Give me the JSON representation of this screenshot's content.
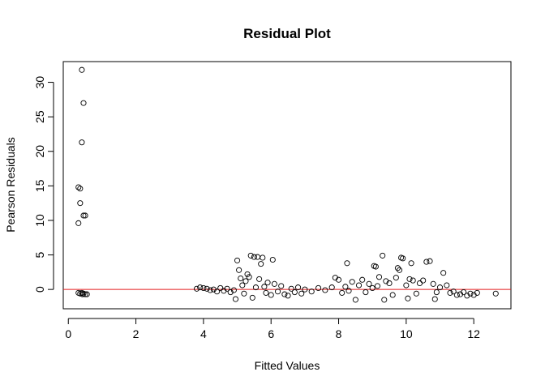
{
  "chart_data": {
    "type": "scatter",
    "title": "Residual Plot",
    "xlabel": "Fitted Values",
    "ylabel": "Pearson Residuals",
    "xlim": [
      -0.15,
      13.1
    ],
    "ylim": [
      -2.8,
      33.0
    ],
    "xticks": [
      0,
      2,
      4,
      6,
      8,
      10,
      12
    ],
    "yticks": [
      0,
      5,
      10,
      15,
      20,
      25,
      30
    ],
    "hline": {
      "y": 0,
      "color": "#e31a1c"
    },
    "point_color": "#000000",
    "grid": false,
    "legend": "none",
    "points": [
      [
        0.4,
        31.8
      ],
      [
        0.45,
        27.0
      ],
      [
        0.4,
        21.3
      ],
      [
        0.3,
        14.8
      ],
      [
        0.35,
        14.6
      ],
      [
        0.35,
        12.5
      ],
      [
        0.45,
        10.7
      ],
      [
        0.5,
        10.7
      ],
      [
        0.3,
        9.6
      ],
      [
        0.3,
        -0.5
      ],
      [
        0.35,
        -0.6
      ],
      [
        0.4,
        -0.5
      ],
      [
        0.42,
        -0.7
      ],
      [
        0.45,
        -0.6
      ],
      [
        0.5,
        -0.7
      ],
      [
        0.55,
        -0.7
      ],
      [
        3.8,
        0.1
      ],
      [
        3.9,
        0.3
      ],
      [
        4.0,
        0.2
      ],
      [
        4.1,
        0.1
      ],
      [
        4.2,
        -0.1
      ],
      [
        4.3,
        0.0
      ],
      [
        4.4,
        -0.3
      ],
      [
        4.5,
        0.2
      ],
      [
        4.6,
        -0.2
      ],
      [
        4.7,
        0.1
      ],
      [
        4.8,
        -0.4
      ],
      [
        4.9,
        -0.1
      ],
      [
        4.95,
        -1.4
      ],
      [
        5.0,
        4.2
      ],
      [
        5.05,
        2.8
      ],
      [
        5.1,
        1.6
      ],
      [
        5.15,
        0.6
      ],
      [
        5.2,
        -0.6
      ],
      [
        5.25,
        1.2
      ],
      [
        5.3,
        2.2
      ],
      [
        5.35,
        1.8
      ],
      [
        5.4,
        4.9
      ],
      [
        5.45,
        -1.2
      ],
      [
        5.5,
        4.7
      ],
      [
        5.55,
        0.3
      ],
      [
        5.6,
        4.7
      ],
      [
        5.65,
        1.5
      ],
      [
        5.7,
        3.7
      ],
      [
        5.75,
        4.6
      ],
      [
        5.8,
        0.4
      ],
      [
        5.85,
        -0.5
      ],
      [
        5.9,
        1.0
      ],
      [
        6.0,
        -0.8
      ],
      [
        6.05,
        4.3
      ],
      [
        6.1,
        0.8
      ],
      [
        6.2,
        -0.3
      ],
      [
        6.3,
        0.5
      ],
      [
        6.4,
        -0.7
      ],
      [
        6.5,
        -0.9
      ],
      [
        6.6,
        0.1
      ],
      [
        6.7,
        -0.4
      ],
      [
        6.8,
        0.3
      ],
      [
        6.9,
        -0.6
      ],
      [
        7.0,
        0.0
      ],
      [
        7.2,
        -0.3
      ],
      [
        7.4,
        0.2
      ],
      [
        7.6,
        -0.1
      ],
      [
        7.8,
        0.3
      ],
      [
        7.9,
        1.7
      ],
      [
        8.0,
        1.4
      ],
      [
        8.1,
        -0.5
      ],
      [
        8.2,
        0.4
      ],
      [
        8.25,
        3.8
      ],
      [
        8.3,
        -0.2
      ],
      [
        8.4,
        1.1
      ],
      [
        8.5,
        -1.5
      ],
      [
        8.6,
        0.6
      ],
      [
        8.7,
        1.4
      ],
      [
        8.8,
        -0.4
      ],
      [
        8.9,
        0.8
      ],
      [
        9.0,
        0.2
      ],
      [
        9.05,
        3.4
      ],
      [
        9.1,
        3.3
      ],
      [
        9.15,
        0.5
      ],
      [
        9.2,
        1.8
      ],
      [
        9.3,
        4.9
      ],
      [
        9.35,
        -1.5
      ],
      [
        9.4,
        1.2
      ],
      [
        9.5,
        0.9
      ],
      [
        9.6,
        -0.8
      ],
      [
        9.7,
        1.7
      ],
      [
        9.75,
        3.1
      ],
      [
        9.8,
        2.8
      ],
      [
        9.85,
        4.6
      ],
      [
        9.9,
        4.5
      ],
      [
        10.0,
        0.6
      ],
      [
        10.05,
        -1.3
      ],
      [
        10.1,
        1.5
      ],
      [
        10.15,
        3.8
      ],
      [
        10.2,
        1.3
      ],
      [
        10.3,
        -0.6
      ],
      [
        10.4,
        0.9
      ],
      [
        10.5,
        1.3
      ],
      [
        10.6,
        4.0
      ],
      [
        10.7,
        4.1
      ],
      [
        10.8,
        0.8
      ],
      [
        10.85,
        -1.4
      ],
      [
        10.9,
        -0.4
      ],
      [
        11.0,
        0.3
      ],
      [
        11.1,
        2.4
      ],
      [
        11.2,
        0.6
      ],
      [
        11.3,
        -0.5
      ],
      [
        11.4,
        -0.3
      ],
      [
        11.5,
        -0.8
      ],
      [
        11.6,
        -0.7
      ],
      [
        11.7,
        -0.4
      ],
      [
        11.8,
        -0.9
      ],
      [
        11.9,
        -0.6
      ],
      [
        12.0,
        -0.8
      ],
      [
        12.1,
        -0.5
      ],
      [
        12.65,
        -0.6
      ]
    ]
  }
}
